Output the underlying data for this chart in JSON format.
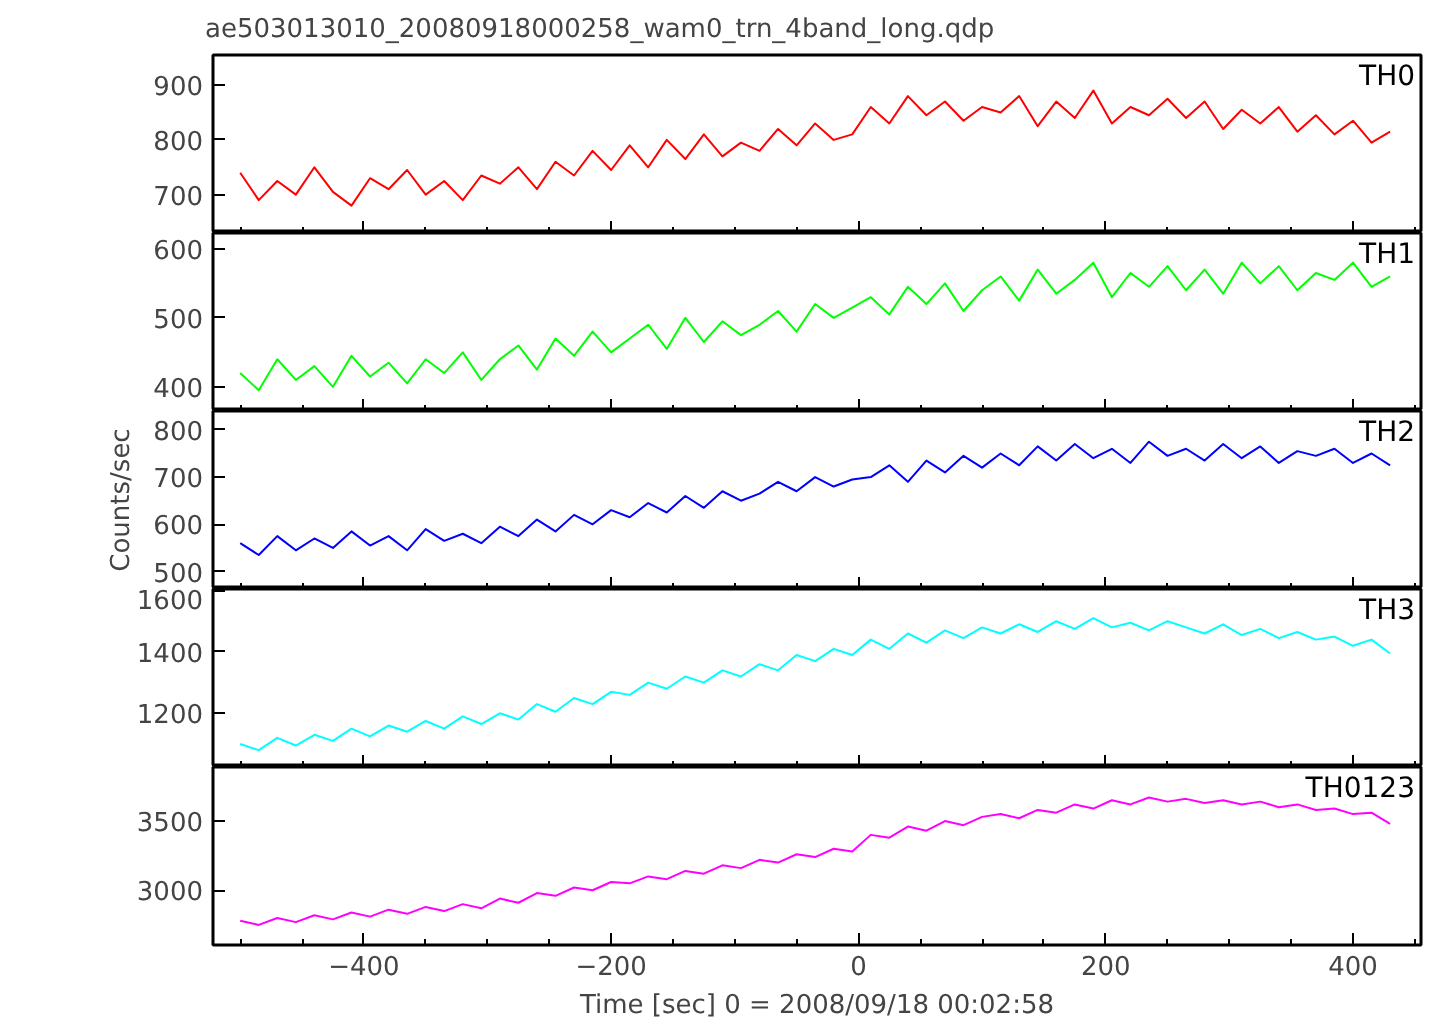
{
  "chart_data": [
    {
      "type": "line",
      "title": "ae503013010_20080918000258_wam0_trn_4band_long.qdp",
      "tick_labels": "y",
      "grid": false,
      "legend": false,
      "xlim": [
        -522,
        455
      ],
      "xticks": [
        -400,
        -200,
        0,
        200,
        400
      ],
      "ylim": [
        630,
        955
      ],
      "yticks": [
        700,
        800,
        900
      ],
      "x": [
        -500,
        -485,
        -470,
        -455,
        -440,
        -425,
        -410,
        -395,
        -380,
        -365,
        -350,
        -335,
        -320,
        -305,
        -290,
        -275,
        -260,
        -245,
        -230,
        -215,
        -200,
        -185,
        -170,
        -155,
        -140,
        -125,
        -110,
        -95,
        -80,
        -65,
        -50,
        -35,
        -20,
        -5,
        10,
        25,
        40,
        55,
        70,
        85,
        100,
        115,
        130,
        145,
        160,
        175,
        190,
        205,
        220,
        235,
        250,
        265,
        280,
        295,
        310,
        325,
        340,
        355,
        370,
        385,
        400,
        415,
        430
      ],
      "series": [
        {
          "name": "TH0",
          "color": "#ff0000",
          "values": [
            740,
            690,
            725,
            700,
            750,
            705,
            680,
            730,
            710,
            745,
            700,
            725,
            690,
            735,
            720,
            750,
            710,
            760,
            735,
            780,
            745,
            790,
            750,
            800,
            765,
            810,
            770,
            795,
            780,
            820,
            790,
            830,
            800,
            810,
            860,
            830,
            880,
            845,
            870,
            835,
            860,
            850,
            880,
            825,
            870,
            840,
            890,
            830,
            860,
            845,
            875,
            840,
            870,
            820,
            855,
            830,
            860,
            815,
            845,
            810,
            835,
            795,
            815
          ]
        }
      ]
    },
    {
      "type": "line",
      "tick_labels": "y",
      "grid": false,
      "legend": false,
      "xlim": [
        -522,
        455
      ],
      "xticks": [
        -400,
        -200,
        0,
        200,
        400
      ],
      "ylim": [
        365,
        623
      ],
      "yticks": [
        400,
        500,
        600
      ],
      "x": [
        -500,
        -485,
        -470,
        -455,
        -440,
        -425,
        -410,
        -395,
        -380,
        -365,
        -350,
        -335,
        -320,
        -305,
        -290,
        -275,
        -260,
        -245,
        -230,
        -215,
        -200,
        -185,
        -170,
        -155,
        -140,
        -125,
        -110,
        -95,
        -80,
        -65,
        -50,
        -35,
        -20,
        -5,
        10,
        25,
        40,
        55,
        70,
        85,
        100,
        115,
        130,
        145,
        160,
        175,
        190,
        205,
        220,
        235,
        250,
        265,
        280,
        295,
        310,
        325,
        340,
        355,
        370,
        385,
        400,
        415,
        430
      ],
      "series": [
        {
          "name": "TH1",
          "color": "#00ff00",
          "values": [
            420,
            395,
            440,
            410,
            430,
            400,
            445,
            415,
            435,
            405,
            440,
            420,
            450,
            410,
            440,
            460,
            425,
            470,
            445,
            480,
            450,
            470,
            490,
            455,
            500,
            465,
            495,
            475,
            490,
            510,
            480,
            520,
            500,
            515,
            530,
            505,
            545,
            520,
            550,
            510,
            540,
            560,
            525,
            570,
            535,
            555,
            580,
            530,
            565,
            545,
            575,
            540,
            570,
            535,
            580,
            550,
            575,
            540,
            565,
            555,
            580,
            545,
            560
          ]
        }
      ]
    },
    {
      "type": "line",
      "ylabel": "Counts/sec",
      "tick_labels": "y",
      "grid": false,
      "legend": false,
      "xlim": [
        -522,
        455
      ],
      "xticks": [
        -400,
        -200,
        0,
        200,
        400
      ],
      "ylim": [
        463,
        840
      ],
      "yticks": [
        500,
        600,
        700,
        800
      ],
      "x": [
        -500,
        -485,
        -470,
        -455,
        -440,
        -425,
        -410,
        -395,
        -380,
        -365,
        -350,
        -335,
        -320,
        -305,
        -290,
        -275,
        -260,
        -245,
        -230,
        -215,
        -200,
        -185,
        -170,
        -155,
        -140,
        -125,
        -110,
        -95,
        -80,
        -65,
        -50,
        -35,
        -20,
        -5,
        10,
        25,
        40,
        55,
        70,
        85,
        100,
        115,
        130,
        145,
        160,
        175,
        190,
        205,
        220,
        235,
        250,
        265,
        280,
        295,
        310,
        325,
        340,
        355,
        370,
        385,
        400,
        415,
        430
      ],
      "series": [
        {
          "name": "TH2",
          "color": "#0000ff",
          "values": [
            560,
            535,
            575,
            545,
            570,
            550,
            585,
            555,
            575,
            545,
            590,
            565,
            580,
            560,
            595,
            575,
            610,
            585,
            620,
            600,
            630,
            615,
            645,
            625,
            660,
            635,
            670,
            650,
            665,
            690,
            670,
            700,
            680,
            695,
            700,
            725,
            690,
            735,
            710,
            745,
            720,
            750,
            725,
            765,
            735,
            770,
            740,
            760,
            730,
            775,
            745,
            760,
            735,
            770,
            740,
            765,
            730,
            755,
            745,
            760,
            730,
            750,
            725
          ]
        }
      ]
    },
    {
      "type": "line",
      "tick_labels": "y",
      "grid": false,
      "legend": false,
      "xlim": [
        -522,
        455
      ],
      "xticks": [
        -400,
        -200,
        0,
        200,
        400
      ],
      "ylim": [
        1025,
        1605
      ],
      "yticks": [
        1200,
        1400,
        1600
      ],
      "x": [
        -500,
        -485,
        -470,
        -455,
        -440,
        -425,
        -410,
        -395,
        -380,
        -365,
        -350,
        -335,
        -320,
        -305,
        -290,
        -275,
        -260,
        -245,
        -230,
        -215,
        -200,
        -185,
        -170,
        -155,
        -140,
        -125,
        -110,
        -95,
        -80,
        -65,
        -50,
        -35,
        -20,
        -5,
        10,
        25,
        40,
        55,
        70,
        85,
        100,
        115,
        130,
        145,
        160,
        175,
        190,
        205,
        220,
        235,
        250,
        265,
        280,
        295,
        310,
        325,
        340,
        355,
        370,
        385,
        400,
        415,
        430
      ],
      "series": [
        {
          "name": "TH3",
          "color": "#00ffff",
          "values": [
            1100,
            1080,
            1120,
            1095,
            1130,
            1110,
            1150,
            1125,
            1160,
            1140,
            1175,
            1150,
            1190,
            1165,
            1200,
            1180,
            1230,
            1205,
            1250,
            1230,
            1270,
            1260,
            1300,
            1280,
            1320,
            1300,
            1340,
            1320,
            1360,
            1340,
            1390,
            1370,
            1410,
            1390,
            1440,
            1410,
            1460,
            1430,
            1470,
            1445,
            1480,
            1460,
            1490,
            1465,
            1500,
            1475,
            1510,
            1480,
            1495,
            1470,
            1500,
            1480,
            1460,
            1490,
            1455,
            1475,
            1445,
            1465,
            1440,
            1450,
            1420,
            1440,
            1395
          ]
        }
      ]
    },
    {
      "type": "line",
      "xlabel": "Time [sec] 0 = 2008/09/18 00:02:58",
      "grid": false,
      "legend": false,
      "xlim": [
        -522,
        455
      ],
      "xticks": [
        -400,
        -200,
        0,
        200,
        400
      ],
      "ylim": [
        2605,
        3890
      ],
      "yticks": [
        3000,
        3500
      ],
      "x": [
        -500,
        -485,
        -470,
        -455,
        -440,
        -425,
        -410,
        -395,
        -380,
        -365,
        -350,
        -335,
        -320,
        -305,
        -290,
        -275,
        -260,
        -245,
        -230,
        -215,
        -200,
        -185,
        -170,
        -155,
        -140,
        -125,
        -110,
        -95,
        -80,
        -65,
        -50,
        -35,
        -20,
        -5,
        10,
        25,
        40,
        55,
        70,
        85,
        100,
        115,
        130,
        145,
        160,
        175,
        190,
        205,
        220,
        235,
        250,
        265,
        280,
        295,
        310,
        325,
        340,
        355,
        370,
        385,
        400,
        415,
        430
      ],
      "series": [
        {
          "name": "TH0123",
          "color": "#ff00ff",
          "values": [
            2780,
            2750,
            2800,
            2770,
            2820,
            2790,
            2840,
            2810,
            2860,
            2830,
            2880,
            2850,
            2900,
            2870,
            2940,
            2910,
            2980,
            2960,
            3020,
            3000,
            3060,
            3050,
            3100,
            3080,
            3140,
            3120,
            3180,
            3160,
            3220,
            3200,
            3260,
            3240,
            3300,
            3280,
            3400,
            3380,
            3460,
            3430,
            3500,
            3470,
            3530,
            3550,
            3520,
            3580,
            3560,
            3620,
            3590,
            3650,
            3620,
            3670,
            3640,
            3660,
            3630,
            3650,
            3620,
            3640,
            3600,
            3620,
            3580,
            3590,
            3550,
            3560,
            3480
          ]
        }
      ]
    }
  ]
}
